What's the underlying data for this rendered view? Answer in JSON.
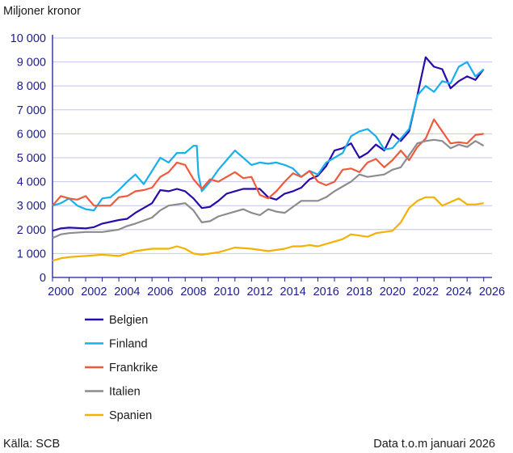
{
  "chart_data": {
    "type": "line",
    "ylabel": "Miljoner kronor",
    "ylim": [
      0,
      10000
    ],
    "xlim": [
      2000,
      2026.5
    ],
    "yticks": [
      "0",
      "1 000",
      "2 000",
      "3 000",
      "4 000",
      "5 000",
      "6 000",
      "7 000",
      "8 000",
      "9 000",
      "10 000"
    ],
    "ytick_values": [
      0,
      1000,
      2000,
      3000,
      4000,
      5000,
      6000,
      7000,
      8000,
      9000,
      10000
    ],
    "xticks": [
      "2000",
      "2002",
      "2004",
      "2006",
      "2008",
      "2010",
      "2012",
      "2014",
      "2016",
      "2018",
      "2020",
      "2022",
      "2024",
      "2026"
    ],
    "grid": "horizontal",
    "legend_position": "bottom-left",
    "series": [
      {
        "name": "Belgien",
        "color": "#2a0aa8",
        "points": [
          [
            2000,
            1950
          ],
          [
            2000.5,
            2050
          ],
          [
            2001,
            2080
          ],
          [
            2002,
            2050
          ],
          [
            2002.5,
            2100
          ],
          [
            2003,
            2250
          ],
          [
            2004,
            2400
          ],
          [
            2004.5,
            2450
          ],
          [
            2005,
            2700
          ],
          [
            2006,
            3100
          ],
          [
            2006.5,
            3650
          ],
          [
            2007,
            3600
          ],
          [
            2007.5,
            3700
          ],
          [
            2008,
            3600
          ],
          [
            2008.5,
            3300
          ],
          [
            2009,
            2900
          ],
          [
            2009.5,
            2950
          ],
          [
            2010,
            3200
          ],
          [
            2010.5,
            3500
          ],
          [
            2011,
            3600
          ],
          [
            2011.5,
            3700
          ],
          [
            2012,
            3700
          ],
          [
            2012.5,
            3700
          ],
          [
            2013,
            3350
          ],
          [
            2013.5,
            3250
          ],
          [
            2014,
            3500
          ],
          [
            2014.5,
            3600
          ],
          [
            2015,
            3750
          ],
          [
            2015.5,
            4100
          ],
          [
            2016,
            4250
          ],
          [
            2016.5,
            4650
          ],
          [
            2017,
            5300
          ],
          [
            2017.5,
            5400
          ],
          [
            2018,
            5600
          ],
          [
            2018.5,
            5000
          ],
          [
            2019,
            5200
          ],
          [
            2019.5,
            5550
          ],
          [
            2020,
            5300
          ],
          [
            2020.5,
            6000
          ],
          [
            2021,
            5700
          ],
          [
            2021.5,
            6100
          ],
          [
            2022,
            7600
          ],
          [
            2022.5,
            9200
          ],
          [
            2023,
            8800
          ],
          [
            2023.5,
            8700
          ],
          [
            2024,
            7900
          ],
          [
            2024.5,
            8200
          ],
          [
            2025,
            8400
          ],
          [
            2025.5,
            8250
          ],
          [
            2026,
            8700
          ]
        ]
      },
      {
        "name": "Finland",
        "color": "#18b0e8",
        "points": [
          [
            2000,
            3000
          ],
          [
            2000.5,
            3100
          ],
          [
            2001,
            3300
          ],
          [
            2001.5,
            3000
          ],
          [
            2002,
            2850
          ],
          [
            2002.5,
            2800
          ],
          [
            2003,
            3300
          ],
          [
            2003.5,
            3350
          ],
          [
            2004,
            3650
          ],
          [
            2004.5,
            4000
          ],
          [
            2005,
            4300
          ],
          [
            2005.5,
            3900
          ],
          [
            2006,
            4450
          ],
          [
            2006.5,
            5000
          ],
          [
            2007,
            4800
          ],
          [
            2007.5,
            5200
          ],
          [
            2008,
            5200
          ],
          [
            2008.5,
            5500
          ],
          [
            2008.7,
            5500
          ],
          [
            2008.8,
            4300
          ],
          [
            2009,
            3600
          ],
          [
            2009.5,
            4000
          ],
          [
            2010,
            4500
          ],
          [
            2010.5,
            4900
          ],
          [
            2011,
            5300
          ],
          [
            2011.5,
            5000
          ],
          [
            2012,
            4700
          ],
          [
            2012.5,
            4800
          ],
          [
            2013,
            4750
          ],
          [
            2013.5,
            4800
          ],
          [
            2014,
            4700
          ],
          [
            2014.5,
            4550
          ],
          [
            2015,
            4200
          ],
          [
            2015.5,
            4450
          ],
          [
            2016,
            4300
          ],
          [
            2016.5,
            4800
          ],
          [
            2017,
            5000
          ],
          [
            2017.5,
            5200
          ],
          [
            2018,
            5900
          ],
          [
            2018.5,
            6100
          ],
          [
            2019,
            6200
          ],
          [
            2019.5,
            5900
          ],
          [
            2020,
            5350
          ],
          [
            2020.5,
            5400
          ],
          [
            2021,
            5800
          ],
          [
            2021.5,
            6200
          ],
          [
            2022,
            7600
          ],
          [
            2022.5,
            8000
          ],
          [
            2023,
            7750
          ],
          [
            2023.5,
            8200
          ],
          [
            2024,
            8100
          ],
          [
            2024.5,
            8800
          ],
          [
            2025,
            9000
          ],
          [
            2025.5,
            8400
          ],
          [
            2026,
            8700
          ]
        ]
      },
      {
        "name": "Frankrike",
        "color": "#f05a3c",
        "points": [
          [
            2000,
            3000
          ],
          [
            2000.5,
            3400
          ],
          [
            2001,
            3300
          ],
          [
            2001.5,
            3250
          ],
          [
            2002,
            3400
          ],
          [
            2002.5,
            3000
          ],
          [
            2003,
            3000
          ],
          [
            2003.5,
            3000
          ],
          [
            2004,
            3350
          ],
          [
            2004.5,
            3400
          ],
          [
            2005,
            3600
          ],
          [
            2005.5,
            3650
          ],
          [
            2006,
            3750
          ],
          [
            2006.5,
            4200
          ],
          [
            2007,
            4400
          ],
          [
            2007.5,
            4800
          ],
          [
            2008,
            4700
          ],
          [
            2008.5,
            4100
          ],
          [
            2009,
            3700
          ],
          [
            2009.5,
            4100
          ],
          [
            2010,
            4000
          ],
          [
            2010.5,
            4200
          ],
          [
            2011,
            4400
          ],
          [
            2011.5,
            4150
          ],
          [
            2012,
            4200
          ],
          [
            2012.5,
            3450
          ],
          [
            2013,
            3300
          ],
          [
            2013.5,
            3600
          ],
          [
            2014,
            4000
          ],
          [
            2014.5,
            4350
          ],
          [
            2015,
            4200
          ],
          [
            2015.5,
            4450
          ],
          [
            2016,
            4000
          ],
          [
            2016.5,
            3850
          ],
          [
            2017,
            4000
          ],
          [
            2017.5,
            4500
          ],
          [
            2018,
            4550
          ],
          [
            2018.5,
            4400
          ],
          [
            2019,
            4800
          ],
          [
            2019.5,
            4950
          ],
          [
            2020,
            4600
          ],
          [
            2020.5,
            4900
          ],
          [
            2021,
            5300
          ],
          [
            2021.5,
            4900
          ],
          [
            2022,
            5450
          ],
          [
            2022.5,
            5800
          ],
          [
            2023,
            6600
          ],
          [
            2023.5,
            6100
          ],
          [
            2024,
            5600
          ],
          [
            2024.5,
            5650
          ],
          [
            2025,
            5600
          ],
          [
            2025.5,
            5950
          ],
          [
            2026,
            6000
          ]
        ]
      },
      {
        "name": "Italien",
        "color": "#8c8c8c",
        "points": [
          [
            2000,
            1650
          ],
          [
            2000.5,
            1800
          ],
          [
            2001,
            1850
          ],
          [
            2002,
            1900
          ],
          [
            2003,
            1900
          ],
          [
            2004,
            2000
          ],
          [
            2004.5,
            2150
          ],
          [
            2005,
            2250
          ],
          [
            2006,
            2500
          ],
          [
            2006.5,
            2800
          ],
          [
            2007,
            3000
          ],
          [
            2008,
            3100
          ],
          [
            2008.5,
            2800
          ],
          [
            2009,
            2300
          ],
          [
            2009.5,
            2350
          ],
          [
            2010,
            2550
          ],
          [
            2011,
            2750
          ],
          [
            2011.5,
            2850
          ],
          [
            2012,
            2700
          ],
          [
            2012.5,
            2600
          ],
          [
            2013,
            2850
          ],
          [
            2013.5,
            2750
          ],
          [
            2014,
            2700
          ],
          [
            2015,
            3200
          ],
          [
            2016,
            3200
          ],
          [
            2016.5,
            3350
          ],
          [
            2017,
            3600
          ],
          [
            2017.5,
            3800
          ],
          [
            2018,
            4000
          ],
          [
            2018.5,
            4300
          ],
          [
            2019,
            4200
          ],
          [
            2020,
            4300
          ],
          [
            2020.5,
            4500
          ],
          [
            2021,
            4600
          ],
          [
            2021.5,
            5100
          ],
          [
            2022,
            5600
          ],
          [
            2022.5,
            5700
          ],
          [
            2023,
            5750
          ],
          [
            2023.5,
            5700
          ],
          [
            2024,
            5400
          ],
          [
            2024.5,
            5550
          ],
          [
            2025,
            5450
          ],
          [
            2025.5,
            5700
          ],
          [
            2026,
            5500
          ]
        ]
      },
      {
        "name": "Spanien",
        "color": "#f5b000",
        "points": [
          [
            2000,
            700
          ],
          [
            2000.5,
            800
          ],
          [
            2001,
            850
          ],
          [
            2002,
            900
          ],
          [
            2003,
            950
          ],
          [
            2004,
            900
          ],
          [
            2004.5,
            1000
          ],
          [
            2005,
            1100
          ],
          [
            2006,
            1200
          ],
          [
            2007,
            1200
          ],
          [
            2007.5,
            1300
          ],
          [
            2008,
            1200
          ],
          [
            2008.5,
            1000
          ],
          [
            2009,
            950
          ],
          [
            2010,
            1050
          ],
          [
            2010.5,
            1150
          ],
          [
            2011,
            1250
          ],
          [
            2012,
            1200
          ],
          [
            2013,
            1100
          ],
          [
            2014,
            1200
          ],
          [
            2014.5,
            1300
          ],
          [
            2015,
            1300
          ],
          [
            2015.5,
            1350
          ],
          [
            2016,
            1300
          ],
          [
            2017,
            1500
          ],
          [
            2017.5,
            1600
          ],
          [
            2018,
            1800
          ],
          [
            2018.5,
            1750
          ],
          [
            2019,
            1700
          ],
          [
            2019.5,
            1850
          ],
          [
            2020,
            1900
          ],
          [
            2020.5,
            1950
          ],
          [
            2021,
            2300
          ],
          [
            2021.5,
            2900
          ],
          [
            2022,
            3200
          ],
          [
            2022.5,
            3350
          ],
          [
            2023,
            3350
          ],
          [
            2023.5,
            3000
          ],
          [
            2024,
            3150
          ],
          [
            2024.5,
            3300
          ],
          [
            2025,
            3050
          ],
          [
            2025.5,
            3050
          ],
          [
            2026,
            3100
          ]
        ]
      }
    ]
  },
  "footer": {
    "source": "Källa: SCB",
    "note": "Data t.o.m januari 2026"
  }
}
